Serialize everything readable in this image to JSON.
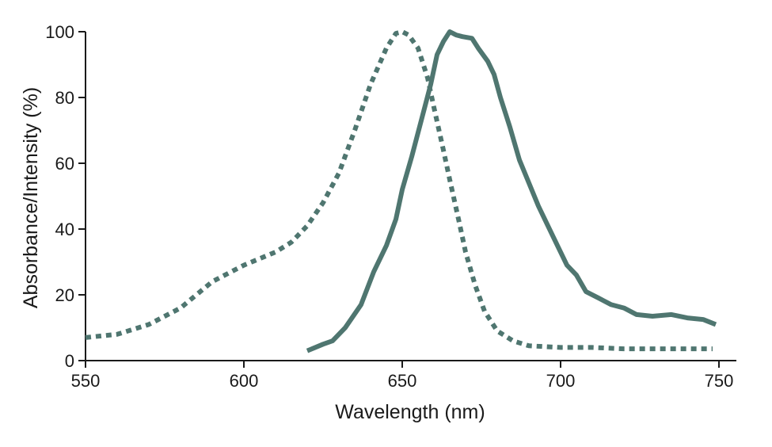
{
  "chart_data": {
    "type": "line",
    "title": "",
    "xlabel": "Wavelength (nm)",
    "ylabel": "Absorbance/Intensity (%)",
    "xlim": [
      550,
      750
    ],
    "ylim": [
      0,
      100
    ],
    "xticks": [
      550,
      600,
      650,
      700,
      750
    ],
    "yticks": [
      0,
      20,
      40,
      60,
      80,
      100
    ],
    "grid": false,
    "legend": "none",
    "series": [
      {
        "style": "dotted",
        "color": "#4f7670",
        "points": [
          [
            550,
            7
          ],
          [
            560,
            8
          ],
          [
            570,
            11
          ],
          [
            580,
            16
          ],
          [
            590,
            24
          ],
          [
            600,
            29
          ],
          [
            610,
            33
          ],
          [
            615,
            36
          ],
          [
            620,
            41
          ],
          [
            625,
            48
          ],
          [
            630,
            57
          ],
          [
            635,
            70
          ],
          [
            640,
            84
          ],
          [
            645,
            95
          ],
          [
            648,
            99.5
          ],
          [
            650,
            100
          ],
          [
            652,
            99
          ],
          [
            655,
            95
          ],
          [
            658,
            86
          ],
          [
            660,
            77
          ],
          [
            663,
            64
          ],
          [
            665,
            55
          ],
          [
            668,
            42
          ],
          [
            670,
            33
          ],
          [
            673,
            23
          ],
          [
            676,
            15
          ],
          [
            680,
            9
          ],
          [
            685,
            6
          ],
          [
            690,
            4.5
          ],
          [
            700,
            4
          ],
          [
            710,
            4
          ],
          [
            720,
            3.6
          ],
          [
            735,
            3.6
          ],
          [
            748,
            3.6
          ]
        ]
      },
      {
        "style": "solid",
        "color": "#4f7670",
        "points": [
          [
            620,
            3
          ],
          [
            625,
            5
          ],
          [
            628,
            6
          ],
          [
            632,
            10
          ],
          [
            637,
            17
          ],
          [
            641,
            27
          ],
          [
            645,
            35
          ],
          [
            648,
            43
          ],
          [
            650,
            52
          ],
          [
            653,
            62
          ],
          [
            656,
            73
          ],
          [
            659,
            84
          ],
          [
            661,
            93
          ],
          [
            663,
            97
          ],
          [
            665,
            100
          ],
          [
            667,
            99
          ],
          [
            669,
            98.5
          ],
          [
            672,
            98
          ],
          [
            674,
            95
          ],
          [
            677,
            91
          ],
          [
            679,
            87
          ],
          [
            681,
            80
          ],
          [
            684,
            71
          ],
          [
            687,
            61
          ],
          [
            690,
            54
          ],
          [
            693,
            47
          ],
          [
            696,
            41
          ],
          [
            699,
            35
          ],
          [
            702,
            29
          ],
          [
            705,
            26
          ],
          [
            708,
            21
          ],
          [
            712,
            19
          ],
          [
            716,
            17
          ],
          [
            720,
            16
          ],
          [
            724,
            14
          ],
          [
            729,
            13.5
          ],
          [
            735,
            14
          ],
          [
            740,
            13
          ],
          [
            745,
            12.5
          ],
          [
            749,
            11
          ]
        ]
      }
    ]
  }
}
